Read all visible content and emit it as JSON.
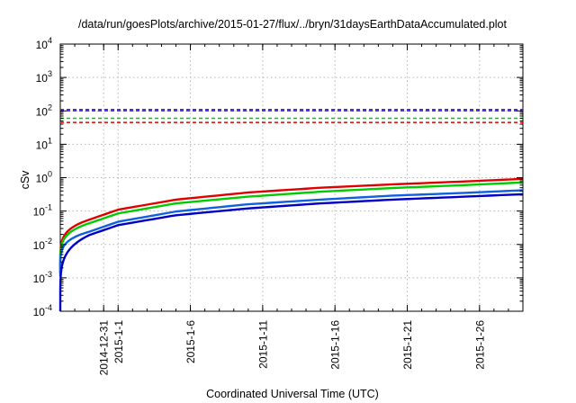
{
  "chart_data": {
    "type": "line",
    "title": "/data/run/goesPlots/archive/2015-01-27/flux/../bryn/31daysEarthDataAccumulated.plot",
    "xlabel": "Coordinated Universal Time (UTC)",
    "ylabel": "cSv",
    "y_scale": "log",
    "ylim": [
      0.0001,
      10000
    ],
    "y_ticks": [
      {
        "value": 0.0001,
        "base": "10",
        "exp": "-4"
      },
      {
        "value": 0.001,
        "base": "10",
        "exp": "-3"
      },
      {
        "value": 0.01,
        "base": "10",
        "exp": "-2"
      },
      {
        "value": 0.1,
        "base": "10",
        "exp": "-1"
      },
      {
        "value": 1,
        "base": "10",
        "exp": "0"
      },
      {
        "value": 10,
        "base": "10",
        "exp": "1"
      },
      {
        "value": 100,
        "base": "10",
        "exp": "2"
      },
      {
        "value": 1000,
        "base": "10",
        "exp": "3"
      },
      {
        "value": 10000,
        "base": "10",
        "exp": "4"
      }
    ],
    "xlim": [
      "2014-12-28",
      "2015-01-29"
    ],
    "x_ticks": [
      "2014-12-31",
      "2015-1-1",
      "2015-1-6",
      "2015-1-11",
      "2015-1-16",
      "2015-1-21",
      "2015-1-26"
    ],
    "x_tick_dates": [
      "2014-12-31",
      "2015-01-01",
      "2015-01-06",
      "2015-01-11",
      "2015-01-16",
      "2015-01-21",
      "2015-01-26"
    ],
    "grid": true,
    "series": [
      {
        "color": "#e00000",
        "x": [
          "2014-12-28",
          "2014-12-30",
          "2015-01-01",
          "2015-01-05",
          "2015-01-10",
          "2015-01-15",
          "2015-01-20",
          "2015-01-25",
          "2015-01-29"
        ],
        "y": [
          0.0015,
          0.055,
          0.11,
          0.22,
          0.36,
          0.5,
          0.63,
          0.77,
          0.92
        ]
      },
      {
        "color": "#00cc00",
        "x": [
          "2014-12-28",
          "2014-12-30",
          "2015-01-01",
          "2015-01-05",
          "2015-01-10",
          "2015-01-15",
          "2015-01-20",
          "2015-01-25",
          "2015-01-29"
        ],
        "y": [
          0.0013,
          0.043,
          0.085,
          0.17,
          0.27,
          0.38,
          0.49,
          0.6,
          0.72
        ]
      },
      {
        "color": "#1060e0",
        "x": [
          "2014-12-28",
          "2014-12-30",
          "2015-01-01",
          "2015-01-05",
          "2015-01-10",
          "2015-01-15",
          "2015-01-20",
          "2015-01-25",
          "2015-01-29"
        ],
        "y": [
          0.0011,
          0.024,
          0.048,
          0.097,
          0.16,
          0.22,
          0.29,
          0.35,
          0.42
        ]
      },
      {
        "color": "#0000c8",
        "x": [
          "2014-12-28",
          "2014-12-30",
          "2015-01-01",
          "2015-01-05",
          "2015-01-10",
          "2015-01-15",
          "2015-01-20",
          "2015-01-25",
          "2015-01-29"
        ],
        "y": [
          0.0001,
          0.019,
          0.038,
          0.075,
          0.12,
          0.17,
          0.22,
          0.27,
          0.32
        ]
      }
    ],
    "reference_lines": [
      {
        "y": 110,
        "color": "#9400d3",
        "style": "dashed"
      },
      {
        "y": 100,
        "color": "#1060e0",
        "style": "dashed"
      },
      {
        "y": 60,
        "color": "#00cc00",
        "style": "dashed"
      },
      {
        "y": 45,
        "color": "#e00000",
        "style": "dashed"
      }
    ]
  }
}
